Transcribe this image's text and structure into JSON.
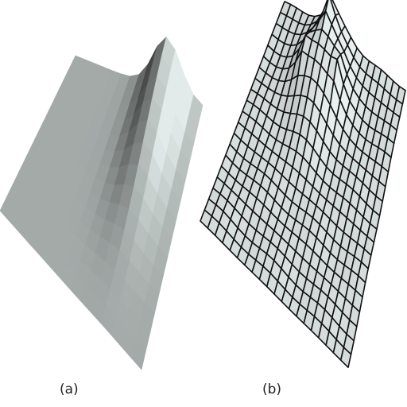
{
  "panels": [
    {
      "label": "(a)",
      "style": "shaded",
      "base_color": "#a9b1b0"
    },
    {
      "label": "(b)",
      "style": "wireframe",
      "face_color": "#d8dedd",
      "line_color": "#111111"
    }
  ]
}
